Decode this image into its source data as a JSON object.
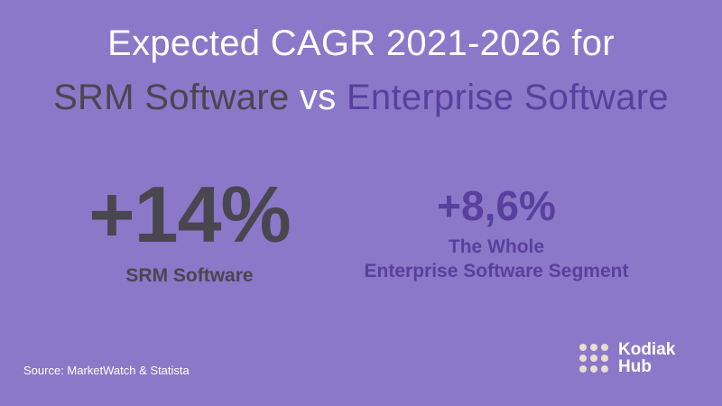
{
  "title": {
    "line1": "Expected CAGR 2021-2026 for",
    "line2_part1": "SRM Software",
    "line2_part2": " vs ",
    "line2_part3": "Enterprise Software"
  },
  "stats": [
    {
      "value": "+14%",
      "label": "SRM Software"
    },
    {
      "value": "+8,6%",
      "label_line1": "The Whole",
      "label_line2": "Enterprise Software Segment"
    }
  ],
  "source": "Source: MarketWatch & Statista",
  "logo": {
    "line1": "Kodiak",
    "line2": "Hub"
  },
  "colors": {
    "background": "#8b78c8",
    "dark_text": "#4a4650",
    "accent_purple": "#5a3f9e",
    "white": "#ffffff"
  }
}
